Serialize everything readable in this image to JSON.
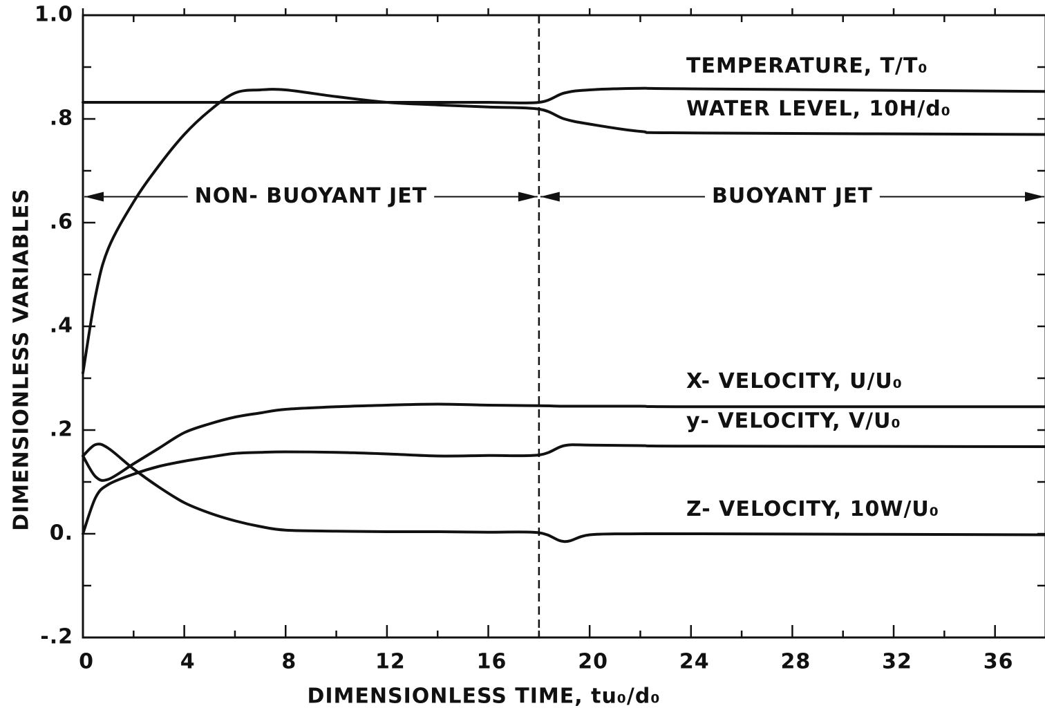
{
  "chart_data": {
    "type": "line",
    "x_label": "DIMENSIONLESS TIME,  tu₀/d₀",
    "y_label": "DIMENSIONLESS VARIABLES",
    "xlim": [
      0,
      38
    ],
    "ylim": [
      -0.2,
      1.0
    ],
    "xticks": [
      0,
      4,
      8,
      12,
      16,
      20,
      24,
      28,
      32,
      36
    ],
    "xminorticks": [
      2,
      6,
      10,
      14,
      18,
      22,
      26,
      30,
      34,
      38
    ],
    "yticks": [
      {
        "value": -0.2,
        "label": "-.2"
      },
      {
        "value": 0,
        "label": "0."
      },
      {
        "value": 0.2,
        "label": ".2"
      },
      {
        "value": 0.4,
        "label": ".4"
      },
      {
        "value": 0.6,
        "label": ".6"
      },
      {
        "value": 0.8,
        "label": ".8"
      },
      {
        "value": 1.0,
        "label": "1.0"
      }
    ],
    "yminorticks": [
      -0.1,
      0.1,
      0.3,
      0.5,
      0.7,
      0.9
    ],
    "x": [
      0,
      0.5,
      1,
      2,
      3,
      4,
      5,
      6,
      7,
      8,
      10,
      12,
      14,
      16,
      18,
      19,
      20,
      22,
      24,
      38
    ],
    "series": [
      {
        "name": "TEMPERATURE,  T/T₀",
        "color": "#111111",
        "values": [
          0.832,
          0.832,
          0.832,
          0.832,
          0.832,
          0.832,
          0.832,
          0.832,
          0.832,
          0.832,
          0.832,
          0.832,
          0.832,
          0.832,
          0.832,
          0.85,
          0.856,
          0.859,
          0.858,
          0.853
        ]
      },
      {
        "name": "WATER LEVEL,  10H/d₀",
        "color": "#111111",
        "values": [
          0.31,
          0.46,
          0.55,
          0.64,
          0.71,
          0.77,
          0.816,
          0.85,
          0.856,
          0.856,
          0.843,
          0.832,
          0.827,
          0.823,
          0.819,
          0.8,
          0.79,
          0.776,
          0.773,
          0.77
        ]
      },
      {
        "name": "X- VELOCITY,    U/U₀",
        "color": "#111111",
        "values": [
          0.15,
          0.11,
          0.105,
          0.135,
          0.165,
          0.195,
          0.212,
          0.225,
          0.233,
          0.24,
          0.245,
          0.248,
          0.25,
          0.248,
          0.247,
          0.246,
          0.246,
          0.246,
          0.245,
          0.245
        ]
      },
      {
        "name": "y- VELOCITY,    V/U₀",
        "color": "#111111",
        "values": [
          0.0,
          0.07,
          0.095,
          0.115,
          0.13,
          0.14,
          0.148,
          0.155,
          0.157,
          0.158,
          0.157,
          0.154,
          0.15,
          0.151,
          0.152,
          0.17,
          0.171,
          0.17,
          0.169,
          0.168
        ]
      },
      {
        "name": "Z- VELOCITY,    10W/U₀",
        "color": "#111111",
        "values": [
          0.15,
          0.172,
          0.165,
          0.125,
          0.09,
          0.06,
          0.04,
          0.025,
          0.014,
          0.007,
          0.005,
          0.004,
          0.004,
          0.003,
          0.002,
          -0.015,
          -0.002,
          0.0,
          0.0,
          -0.002
        ]
      }
    ],
    "vlines": [
      18
    ],
    "annotations": [
      {
        "text": "NON- BUOYANT  JET",
        "x": [
          0,
          18
        ],
        "y": 0.65
      },
      {
        "text": "BUOYANT  JET",
        "x": [
          18,
          38
        ],
        "y": 0.65
      }
    ]
  }
}
